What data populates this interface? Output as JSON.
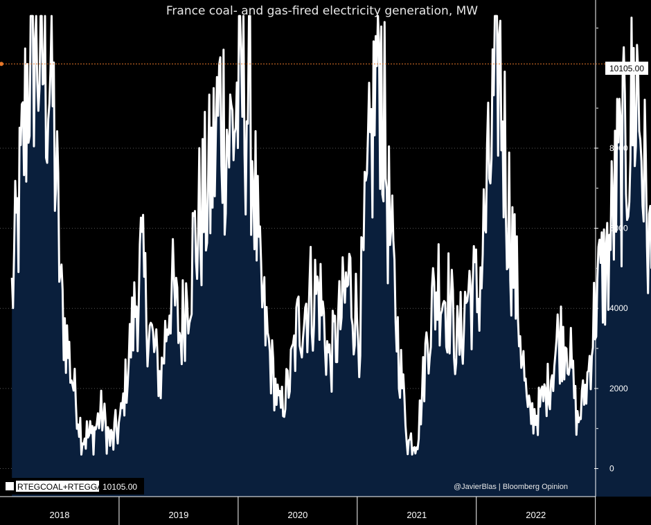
{
  "chart_data": {
    "type": "area",
    "title": "France coal- and gas-fired electricity generation, MW",
    "xlabel": "",
    "ylabel": "",
    "x_categories": [
      "2018",
      "2019",
      "2020",
      "2021",
      "2022"
    ],
    "ylim": [
      -700,
      11700
    ],
    "y_ticks": [
      0,
      2000,
      4000,
      6000,
      8000
    ],
    "reference_line": {
      "value": 10105,
      "label": "10105.00",
      "color": "#e8782a"
    },
    "legend": {
      "series_name": "RTEGCOAL+RTEGGAS",
      "last_value": "10105.00"
    },
    "credit": "@JavierBlas  |  Bloomberg Opinion",
    "colors": {
      "line": "#ffffff",
      "fill": "#0a1f3c",
      "background": "#000000",
      "grid": "#5a5a5a"
    },
    "series": [
      {
        "name": "RTEGCOAL+RTEGGAS",
        "start": 2017.6,
        "step_years": 0.08333,
        "values": [
          4300,
          7400,
          11300,
          10200,
          9900,
          4100,
          2400,
          900,
          750,
          1400,
          600,
          1200,
          3200,
          5100,
          3300,
          2200,
          4600,
          3300,
          5100,
          6300,
          7100,
          9100,
          8200,
          9500,
          9200,
          4500,
          2800,
          1400,
          2200,
          3800,
          4300,
          4400,
          2600,
          3600,
          4700,
          3500,
          7200,
          10900,
          6200,
          2900,
          600,
          1000,
          3600,
          4700,
          4200,
          3000,
          4500,
          4300,
          6900,
          10600,
          6700,
          4100,
          1300,
          1400,
          2000,
          3200,
          3400,
          1100,
          2200,
          4500,
          5100,
          7200,
          8100,
          9700,
          6300,
          3400,
          4900,
          1600,
          4300,
          4300,
          4200,
          3300,
          4800,
          5600,
          6400,
          5800,
          6900,
          10105
        ]
      }
    ]
  }
}
